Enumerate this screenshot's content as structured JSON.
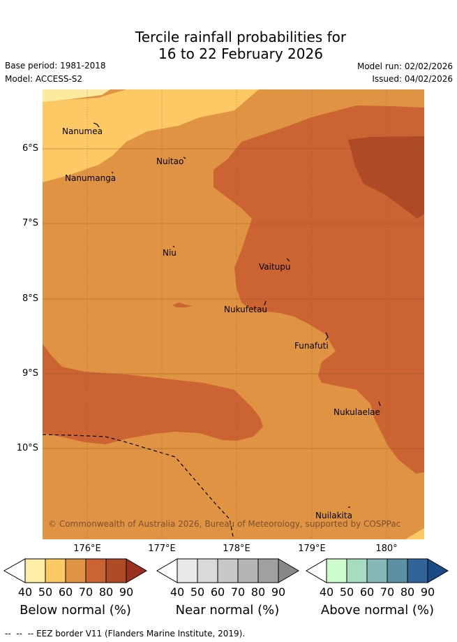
{
  "title": {
    "line1": "Tercile rainfall probabilities for",
    "line2": "16 to 22 February 2026"
  },
  "meta": {
    "base_period": "Base period: 1981-2018",
    "model": "Model: ACCESS-S2",
    "model_run": "Model run: 02/02/2026",
    "issued": "Issued: 04/02/2026"
  },
  "map": {
    "latitude_labels": [
      "6°S",
      "7°S",
      "8°S",
      "9°S",
      "10°S"
    ],
    "longitude_labels": [
      "176°E",
      "177°E",
      "178°E",
      "179°E",
      "180°"
    ],
    "places": {
      "nanumea": "Nanumea",
      "nuitao": "Nuitao",
      "nanumanga": "Nanumanga",
      "niu": "Niu",
      "vaitupu": "Vaitupu",
      "nukufetau": "Nukufetau",
      "funafuti": "Funafuti",
      "nukulaelae": "Nukulaelae",
      "nuilakita": "Nuilakita"
    },
    "copyright": "© Commonwealth of Australia 2026, Bureau of Meteorology, supported by COSPPac",
    "colors": {
      "below_50": "#fee9a0",
      "below_60": "#fdc964",
      "below_70": "#e09443",
      "below_80": "#cc6333",
      "below_90": "#ae4a26",
      "below_max": "#9a3120"
    }
  },
  "colorbars": {
    "ticks": [
      "40",
      "50",
      "60",
      "70",
      "80",
      "90"
    ],
    "below": {
      "title": "Below normal (%)",
      "colors": [
        "#ffeea3",
        "#fdc964",
        "#e09443",
        "#cc6333",
        "#ae4a26",
        "#9a3120"
      ]
    },
    "near": {
      "title": "Near normal (%)",
      "colors": [
        "#e8e8e8",
        "#d9d9d9",
        "#c8c8c8",
        "#b5b5b5",
        "#a0a0a0",
        "#888888"
      ]
    },
    "above": {
      "title": "Above normal (%)",
      "colors": [
        "#ccfccc",
        "#a6dcbf",
        "#84b9b5",
        "#5b91a2",
        "#32649a",
        "#1b4b85"
      ]
    }
  },
  "footer": {
    "eez_legend": "EEZ border V11 (Flanders Marine Institute, 2019)."
  }
}
